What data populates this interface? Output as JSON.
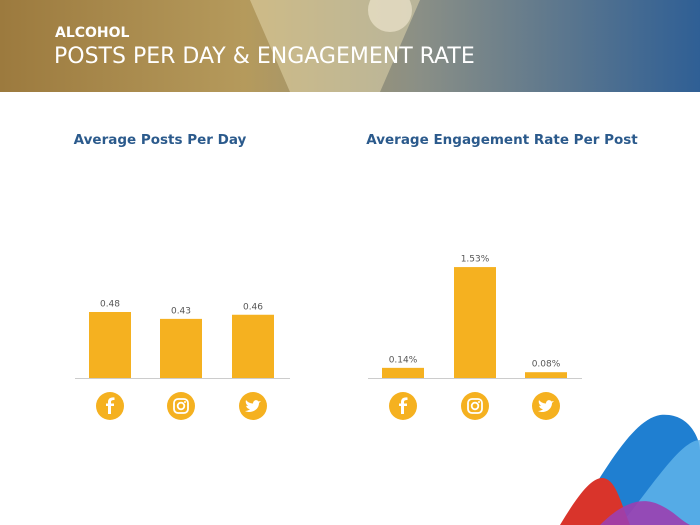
{
  "header": {
    "category": "ALCOHOL",
    "title": "POSTS PER DAY & ENGAGEMENT RATE"
  },
  "chart_data": [
    {
      "type": "bar",
      "title": "Average Posts Per Day",
      "categories": [
        null,
        null,
        null
      ],
      "values": [
        0.48,
        0.43,
        0.46
      ],
      "color": "#f5b120",
      "ylim": [
        0,
        1
      ]
    },
    {
      "type": "bar",
      "title": "Average Engagement Rate Per Post",
      "categories": [
        null,
        null,
        null
      ],
      "values": [
        0.14,
        1.53,
        0.08
      ],
      "value_labels": [
        "0.14%",
        "1.53%",
        "0.08%"
      ],
      "color": "#f5b120",
      "ylim": [
        0,
        2
      ]
    }
  ]
}
